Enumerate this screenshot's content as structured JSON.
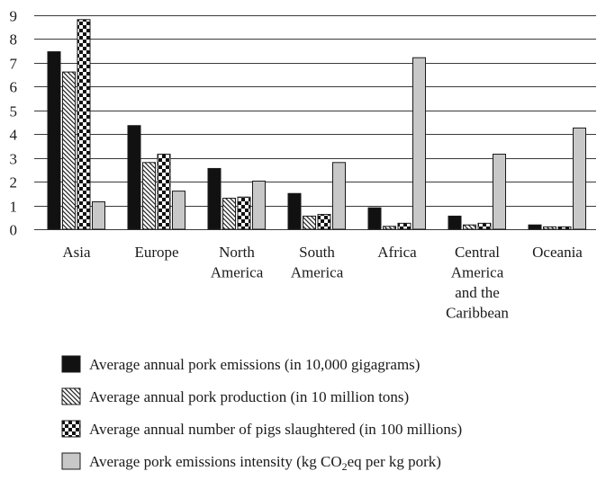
{
  "chart_data": {
    "type": "bar",
    "categories": [
      [
        "Asia"
      ],
      [
        "Europe"
      ],
      [
        "North",
        "America"
      ],
      [
        "South",
        "America"
      ],
      [
        "Africa"
      ],
      [
        "Central",
        "America",
        "and the",
        "Caribbean"
      ],
      [
        "Oceania"
      ]
    ],
    "series": [
      {
        "name": "Average annual pork emissions (in 10,000 gigagrams)",
        "pattern": "solid-black",
        "values": [
          7.45,
          4.35,
          2.55,
          1.5,
          0.9,
          0.55,
          0.18
        ]
      },
      {
        "name": "Average annual pork production (in 10 million tons)",
        "pattern": "diagonal-hatch",
        "values": [
          6.6,
          2.8,
          1.3,
          0.55,
          0.12,
          0.18,
          0.1
        ]
      },
      {
        "name": "Average annual number of pigs slaughtered (in 100 millions)",
        "pattern": "checkerboard",
        "values": [
          8.8,
          3.15,
          1.35,
          0.62,
          0.25,
          0.25,
          0.1
        ]
      },
      {
        "name": "Average pork emissions intensity (kg CO2eq per kg pork)",
        "pattern": "solid-gray",
        "values": [
          1.15,
          1.6,
          2.02,
          2.8,
          7.2,
          3.15,
          4.25
        ]
      }
    ],
    "y_ticks": [
      "0",
      "1",
      "2",
      "3",
      "4",
      "5",
      "6",
      "7",
      "8",
      "9"
    ],
    "ylim": [
      0,
      9
    ],
    "grid": true,
    "legend_position": "bottom",
    "colors": {
      "solid_black": "#111111",
      "hatch": "#222222",
      "checker": "#111111",
      "solid_gray": "#c8c8c8"
    }
  }
}
